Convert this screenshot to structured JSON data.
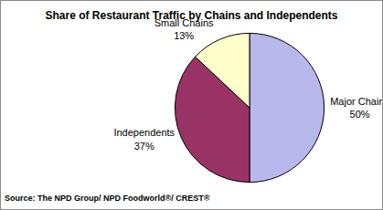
{
  "chart_data": {
    "type": "pie",
    "title": "Share of Restaurant Traffic by Chains and Independents",
    "categories": [
      "Major Chains",
      "Independents",
      "Small Chains"
    ],
    "values": [
      50,
      37,
      13
    ],
    "value_labels": [
      "50%",
      "37%",
      "13%"
    ],
    "colors": [
      "#b8b8ec",
      "#993366",
      "#ffffcc"
    ],
    "data_labels": true,
    "annotations": [
      "Source: The NPD Group/ NPD Foodworld®/ CREST®"
    ]
  }
}
